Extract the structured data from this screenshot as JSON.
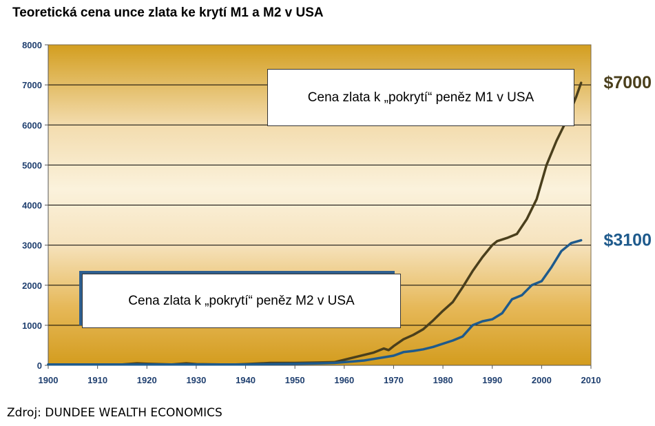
{
  "title": "Teoretická cena unce zlata ke krytí M1 a M2 v USA",
  "source": "Zdroj: DUNDEE WEALTH ECONOMICS",
  "chart_data": {
    "type": "line",
    "xlim": [
      1900,
      2010
    ],
    "ylim": [
      0,
      8000
    ],
    "x_ticks": [
      1900,
      1910,
      1920,
      1930,
      1940,
      1950,
      1960,
      1970,
      1980,
      1990,
      2000,
      2010
    ],
    "y_ticks": [
      0,
      1000,
      2000,
      3000,
      4000,
      5000,
      6000,
      7000,
      8000
    ],
    "grid": true,
    "series": [
      {
        "name": "Cena zlata k „pokrytí“ peněz M1 v USA",
        "color": "#4a3f1c",
        "end_label": "$7000",
        "x": [
          1900,
          1905,
          1910,
          1915,
          1918,
          1920,
          1925,
          1928,
          1930,
          1935,
          1938,
          1940,
          1945,
          1950,
          1955,
          1958,
          1960,
          1962,
          1964,
          1966,
          1968,
          1969,
          1970,
          1972,
          1974,
          1976,
          1978,
          1980,
          1982,
          1984,
          1986,
          1988,
          1990,
          1991,
          1993,
          1995,
          1997,
          1999,
          2001,
          2003,
          2005,
          2007,
          2008
        ],
        "y": [
          20,
          20,
          20,
          20,
          50,
          40,
          20,
          50,
          30,
          20,
          20,
          30,
          60,
          60,
          70,
          80,
          140,
          200,
          260,
          320,
          420,
          380,
          480,
          650,
          760,
          900,
          1120,
          1360,
          1580,
          1950,
          2350,
          2700,
          3000,
          3100,
          3180,
          3280,
          3650,
          4150,
          5000,
          5600,
          6100,
          6700,
          7050
        ]
      },
      {
        "name": "Cena zlata k „pokrytí“ peněz M2 v USA",
        "color": "#1e5a8c",
        "end_label": "$3100",
        "x": [
          1900,
          1910,
          1920,
          1930,
          1940,
          1950,
          1955,
          1958,
          1960,
          1962,
          1964,
          1966,
          1968,
          1970,
          1972,
          1974,
          1976,
          1978,
          1980,
          1982,
          1984,
          1986,
          1988,
          1990,
          1992,
          1994,
          1996,
          1998,
          2000,
          2002,
          2004,
          2006,
          2008
        ],
        "y": [
          20,
          20,
          20,
          20,
          20,
          40,
          50,
          60,
          80,
          100,
          120,
          160,
          200,
          240,
          330,
          360,
          400,
          460,
          540,
          620,
          720,
          1000,
          1100,
          1150,
          1300,
          1650,
          1750,
          2000,
          2100,
          2450,
          2850,
          3050,
          3120
        ]
      }
    ],
    "annotations": [
      "Cena zlata k „pokrytí“ peněz M1 v USA",
      "Cena zlata k „pokrytí“ peněz M2 v USA"
    ]
  }
}
